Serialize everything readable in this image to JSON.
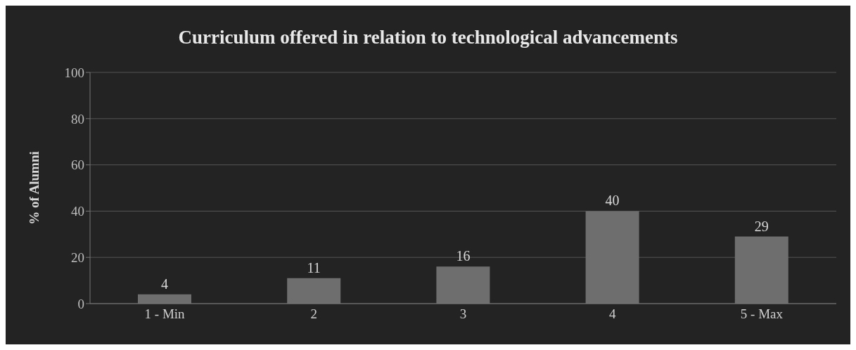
{
  "chart_data": {
    "type": "bar",
    "title": "Curriculum offered in relation to technological advancements",
    "ylabel": "% of Alumni",
    "categories": [
      "1 - Min",
      "2",
      "3",
      "4",
      "5 - Max"
    ],
    "values": [
      4,
      11,
      16,
      40,
      29
    ],
    "color": "#6e6e6e",
    "ylim": [
      0,
      100
    ],
    "yticks": [
      0,
      20,
      40,
      60,
      80,
      100
    ],
    "grid": "y",
    "data_labels": true
  }
}
